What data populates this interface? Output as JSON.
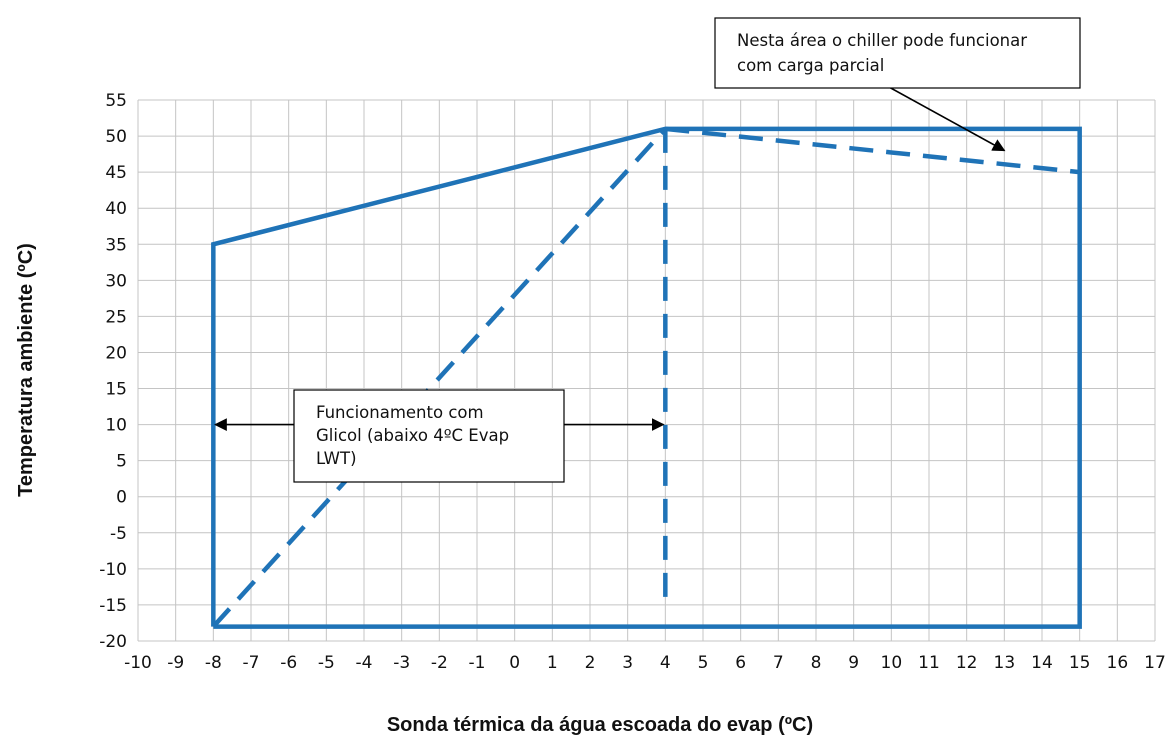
{
  "chart_data": {
    "type": "line",
    "xlabel": "Sonda térmica da água escoada do evap (ºC)",
    "ylabel": "Temperatura ambiente (ºC)",
    "xlim": [
      -10,
      17
    ],
    "ylim": [
      -20,
      55
    ],
    "x_ticks": [
      -10,
      -9,
      -8,
      -7,
      -6,
      -5,
      -4,
      -3,
      -2,
      -1,
      0,
      1,
      2,
      3,
      4,
      5,
      6,
      7,
      8,
      9,
      10,
      11,
      12,
      13,
      14,
      15,
      16,
      17
    ],
    "y_ticks": [
      55,
      50,
      45,
      40,
      35,
      30,
      25,
      20,
      15,
      10,
      5,
      0,
      -5,
      -10,
      -15,
      -20
    ],
    "grid": true,
    "line_color": "#1f73b7",
    "series": [
      {
        "style": "solid",
        "points": [
          [
            -8,
            -18
          ],
          [
            -8,
            35
          ],
          [
            4,
            51
          ],
          [
            15,
            51
          ],
          [
            15,
            -18
          ],
          [
            -8,
            -18
          ]
        ]
      },
      {
        "style": "dashed",
        "points": [
          [
            -8,
            -18
          ],
          [
            4,
            51
          ]
        ]
      },
      {
        "style": "dashed",
        "points": [
          [
            4,
            51
          ],
          [
            4,
            -15
          ]
        ]
      },
      {
        "style": "dashed",
        "points": [
          [
            4,
            51
          ],
          [
            15,
            45
          ]
        ]
      }
    ],
    "annotations": [
      {
        "id": "partial-load",
        "lines": [
          "Nesta área o chiller pode funcionar",
          "com carga parcial"
        ],
        "arrow_to": [
          13,
          48
        ]
      },
      {
        "id": "glycol",
        "lines": [
          "Funcionamento  com",
          "Glicol (abaixo 4ºC Evap",
          "LWT)"
        ],
        "arrows_to": [
          [
            -8,
            10
          ],
          [
            4,
            10
          ]
        ]
      }
    ]
  }
}
